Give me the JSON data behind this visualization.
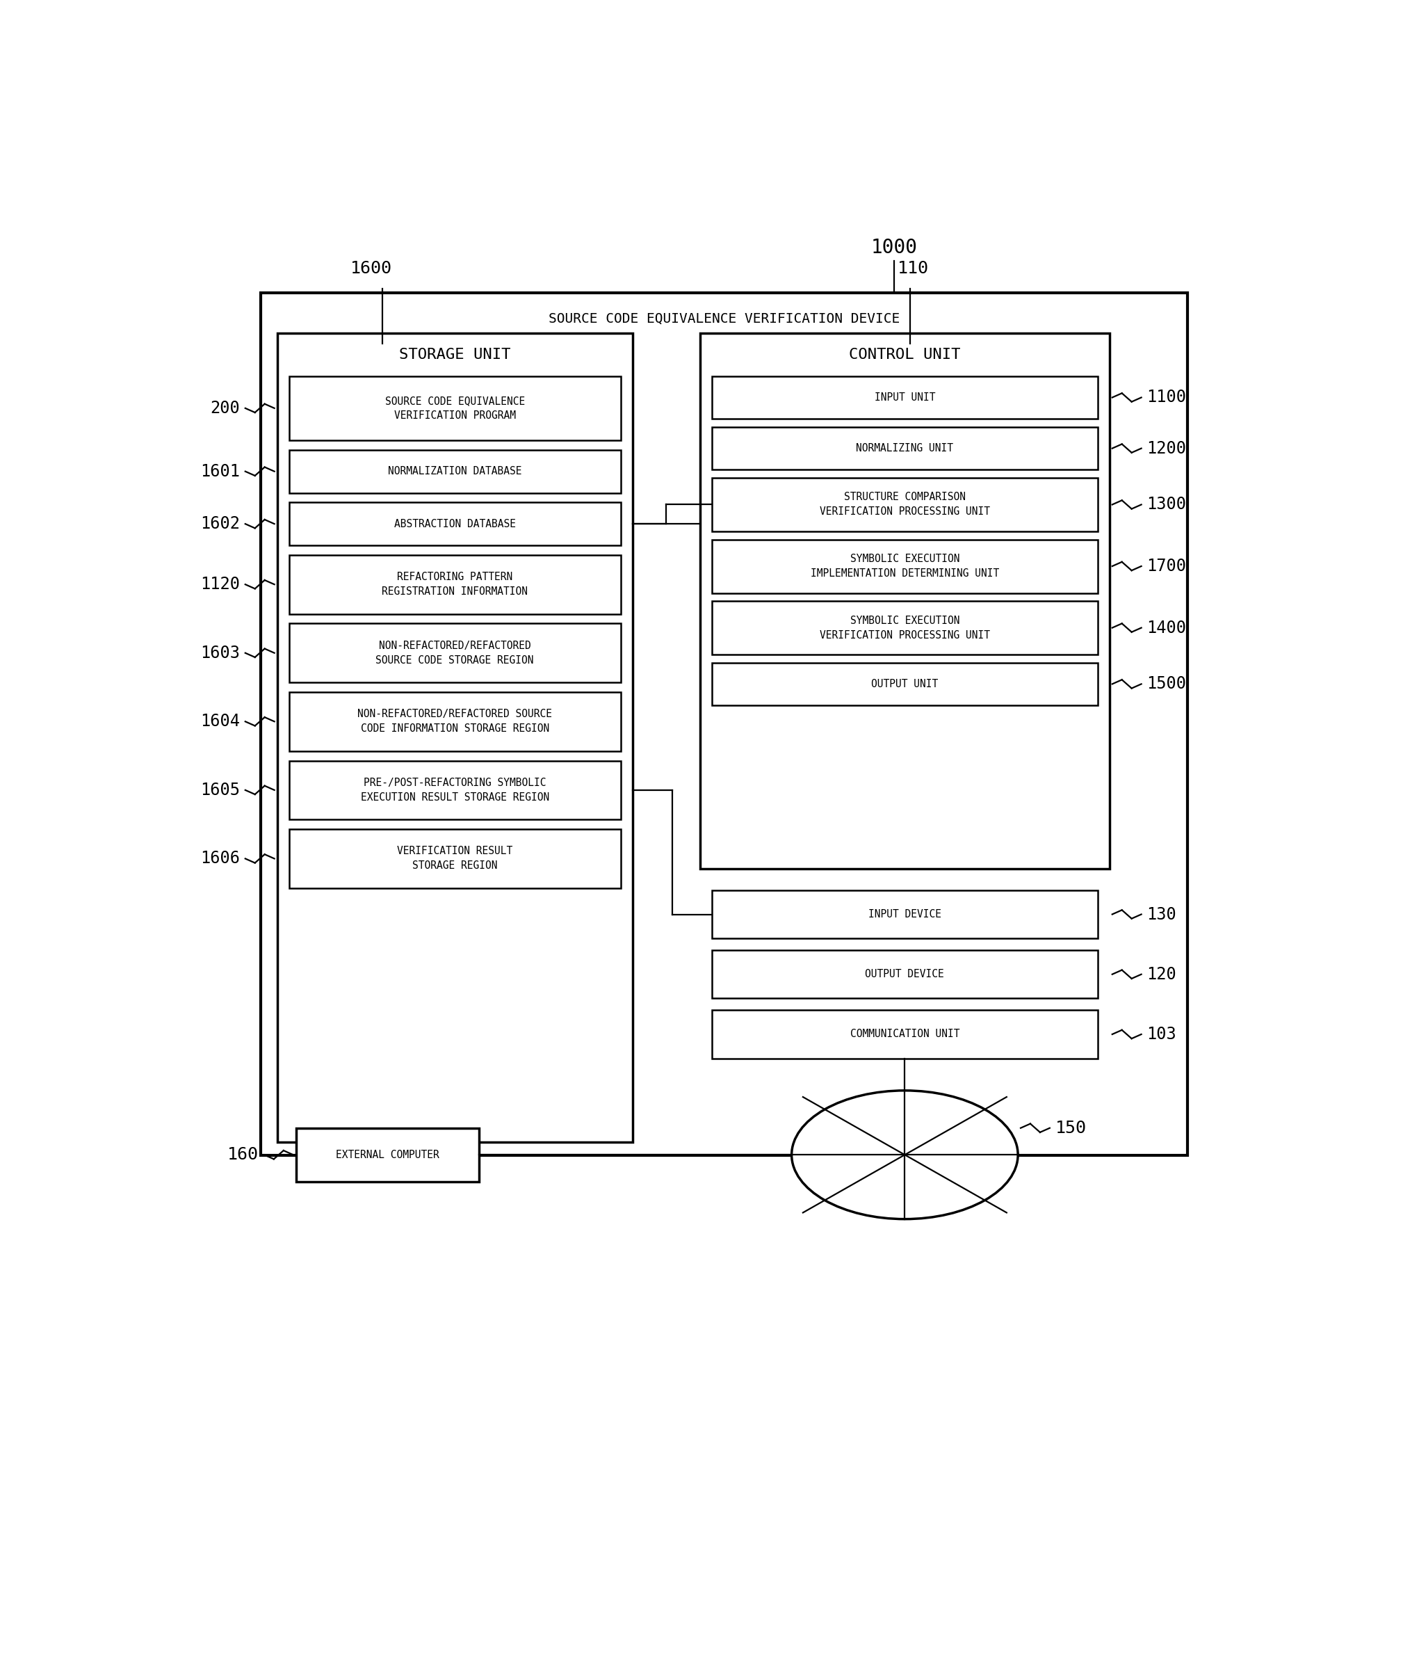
{
  "bg_color": "#ffffff",
  "outer_title": "SOURCE CODE EQUIVALENCE VERIFICATION DEVICE",
  "storage_label": "STORAGE UNIT",
  "control_label": "CONTROL UNIT",
  "storage_items": [
    {
      "label": "SOURCE CODE EQUIVALENCE\nVERIFICATION PROGRAM",
      "ref": "200"
    },
    {
      "label": "NORMALIZATION DATABASE",
      "ref": "1601"
    },
    {
      "label": "ABSTRACTION DATABASE",
      "ref": "1602"
    },
    {
      "label": "REFACTORING PATTERN\nREGISTRATION INFORMATION",
      "ref": "1120"
    },
    {
      "label": "NON-REFACTORED/REFACTORED\nSOURCE CODE STORAGE REGION",
      "ref": "1603"
    },
    {
      "label": "NON-REFACTORED/REFACTORED SOURCE\nCODE INFORMATION STORAGE REGION",
      "ref": "1604"
    },
    {
      "label": "PRE-/POST-REFACTORING SYMBOLIC\nEXECUTION RESULT STORAGE REGION",
      "ref": "1605"
    },
    {
      "label": "VERIFICATION RESULT\nSTORAGE REGION",
      "ref": "1606"
    }
  ],
  "control_items": [
    {
      "label": "INPUT UNIT",
      "ref": "1100"
    },
    {
      "label": "NORMALIZING UNIT",
      "ref": "1200"
    },
    {
      "label": "STRUCTURE COMPARISON\nVERIFICATION PROCESSING UNIT",
      "ref": "1300"
    },
    {
      "label": "SYMBOLIC EXECUTION\nIMPLEMENTATION DETERMINING UNIT",
      "ref": "1700"
    },
    {
      "label": "SYMBOLIC EXECUTION\nVERIFICATION PROCESSING UNIT",
      "ref": "1400"
    },
    {
      "label": "OUTPUT UNIT",
      "ref": "1500"
    }
  ],
  "io_items": [
    {
      "label": "INPUT DEVICE",
      "ref": "130"
    },
    {
      "label": "OUTPUT DEVICE",
      "ref": "120"
    },
    {
      "label": "COMMUNICATION UNIT",
      "ref": "103"
    }
  ],
  "labels_top": [
    "1000",
    "1600",
    "110"
  ],
  "label_network": "150",
  "label_extcomp": "160",
  "ext_computer_text": "EXTERNAL COMPUTER",
  "fontsize_title": 14,
  "fontsize_label": 16,
  "fontsize_ref": 17,
  "fontsize_item": 10.5,
  "lw_outer": 3.0,
  "lw_panel": 2.5,
  "lw_item": 1.8,
  "lw_line": 1.6
}
